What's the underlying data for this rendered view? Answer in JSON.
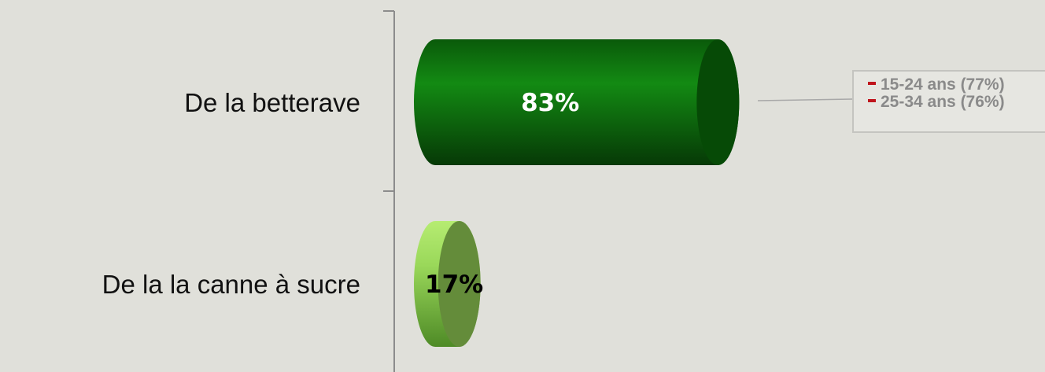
{
  "chart_data": {
    "type": "bar",
    "orientation": "horizontal",
    "categories": [
      "De la betterave",
      "De la la canne à sucre"
    ],
    "values": [
      83,
      17
    ],
    "value_labels": [
      "83%",
      "17%"
    ],
    "xlim": [
      0,
      100
    ],
    "colors": [
      "#0f6e0f",
      "#8fcf45"
    ],
    "label_colors": [
      "#ffffff",
      "#000000"
    ],
    "grid": false,
    "legend": "none"
  },
  "callout": {
    "items": [
      "15-24 ans (77%)",
      "25-34 ans (76%)"
    ],
    "marker_color": "#c0141c"
  }
}
